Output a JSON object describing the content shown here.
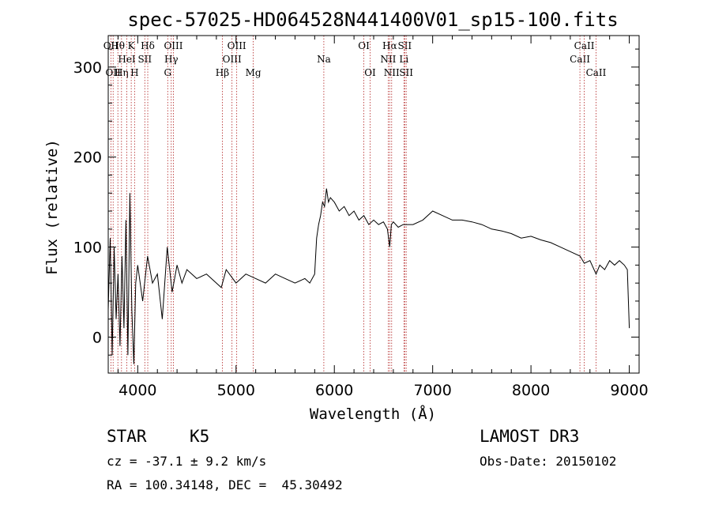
{
  "chart_data": {
    "type": "line",
    "title": "spec-57025-HD064528N441400V01_sp15-100.fits",
    "xlabel": "Wavelength (Å)",
    "ylabel": "Flux (relative)",
    "xlim": [
      3700,
      9100
    ],
    "ylim": [
      -40,
      335
    ],
    "xticks": [
      4000,
      5000,
      6000,
      7000,
      8000,
      9000
    ],
    "yticks": [
      0,
      100,
      200,
      300
    ],
    "series": [
      {
        "name": "flux",
        "x": [
          3700,
          3720,
          3740,
          3760,
          3780,
          3800,
          3820,
          3840,
          3860,
          3880,
          3900,
          3920,
          3940,
          3960,
          3980,
          4000,
          4050,
          4100,
          4150,
          4200,
          4250,
          4300,
          4350,
          4400,
          4450,
          4500,
          4600,
          4700,
          4800,
          4850,
          4900,
          5000,
          5100,
          5200,
          5300,
          5400,
          5500,
          5600,
          5700,
          5750,
          5800,
          5820,
          5840,
          5860,
          5880,
          5900,
          5920,
          5940,
          5960,
          6000,
          6050,
          6100,
          6150,
          6200,
          6250,
          6300,
          6350,
          6400,
          6450,
          6500,
          6540,
          6563,
          6580,
          6600,
          6650,
          6700,
          6800,
          6900,
          7000,
          7100,
          7200,
          7300,
          7400,
          7500,
          7600,
          7700,
          7800,
          7900,
          8000,
          8100,
          8200,
          8300,
          8400,
          8500,
          8542,
          8600,
          8662,
          8700,
          8750,
          8800,
          8850,
          8900,
          8950,
          8980,
          9000
        ],
        "y": [
          30,
          110,
          -20,
          100,
          20,
          70,
          -10,
          90,
          10,
          130,
          -20,
          160,
          30,
          -30,
          60,
          80,
          40,
          90,
          60,
          70,
          20,
          100,
          50,
          80,
          60,
          75,
          65,
          70,
          60,
          55,
          75,
          60,
          70,
          65,
          60,
          70,
          65,
          60,
          65,
          60,
          70,
          110,
          125,
          135,
          150,
          145,
          165,
          150,
          155,
          150,
          140,
          145,
          135,
          140,
          130,
          135,
          125,
          130,
          125,
          128,
          120,
          100,
          125,
          128,
          122,
          125,
          125,
          130,
          140,
          135,
          130,
          130,
          128,
          125,
          120,
          118,
          115,
          110,
          112,
          108,
          105,
          100,
          95,
          90,
          82,
          85,
          70,
          80,
          75,
          85,
          80,
          85,
          80,
          75,
          10
        ]
      }
    ],
    "line_markers": [
      {
        "name": "H-eta-line",
        "label": "Hη",
        "x": 3835,
        "row": 3
      },
      {
        "name": "OII-line",
        "label": "OII",
        "x": 3727,
        "row": 1
      },
      {
        "name": "OII-line-2",
        "label": "OII",
        "x": 3750,
        "row": 3
      },
      {
        "name": "H-theta-line",
        "label": "Hθ",
        "x": 3798,
        "row": 1
      },
      {
        "name": "HeI-line",
        "label": "HeI",
        "x": 3889,
        "row": 2
      },
      {
        "name": "CaII-K-line",
        "label": "K",
        "x": 3934,
        "row": 1
      },
      {
        "name": "CaII-H-line",
        "label": "H",
        "x": 3968,
        "row": 3
      },
      {
        "name": "SII-line",
        "label": "SII",
        "x": 4072,
        "row": 2
      },
      {
        "name": "H-delta-line",
        "label": "Hδ",
        "x": 4102,
        "row": 1
      },
      {
        "name": "G-band-line",
        "label": "G",
        "x": 4305,
        "row": 3
      },
      {
        "name": "H-gamma-line",
        "label": "Hγ",
        "x": 4341,
        "row": 2
      },
      {
        "name": "OIII-line-4363",
        "label": "OIII",
        "x": 4363,
        "row": 1
      },
      {
        "name": "H-beta-line",
        "label": "Hβ",
        "x": 4861,
        "row": 3
      },
      {
        "name": "OIII-line-4959",
        "label": "OIII",
        "x": 4959,
        "row": 2
      },
      {
        "name": "OIII-line-5007",
        "label": "OIII",
        "x": 5007,
        "row": 1
      },
      {
        "name": "Mg-line",
        "label": "Mg",
        "x": 5175,
        "row": 3
      },
      {
        "name": "Na-line",
        "label": "Na",
        "x": 5893,
        "row": 2
      },
      {
        "name": "OI-line-6300",
        "label": "OI",
        "x": 6300,
        "row": 1
      },
      {
        "name": "OI-line-6364",
        "label": "OI",
        "x": 6364,
        "row": 3
      },
      {
        "name": "NII-line-6548",
        "label": "NII",
        "x": 6548,
        "row": 2
      },
      {
        "name": "H-alpha-line",
        "label": "Hα",
        "x": 6563,
        "row": 1
      },
      {
        "name": "NII-line-6583",
        "label": "NII",
        "x": 6583,
        "row": 3
      },
      {
        "name": "Li-line",
        "label": "Li",
        "x": 6708,
        "row": 2
      },
      {
        "name": "SII-line-6716",
        "label": "SII",
        "x": 6716,
        "row": 1
      },
      {
        "name": "SII-line-6731",
        "label": "SII",
        "x": 6731,
        "row": 3
      },
      {
        "name": "CaII-line-8498",
        "label": "CaII",
        "x": 8498,
        "row": 2
      },
      {
        "name": "CaII-line-8542",
        "label": "CaII",
        "x": 8542,
        "row": 1
      },
      {
        "name": "CaII-line-8662",
        "label": "CaII",
        "x": 8662,
        "row": 3
      }
    ],
    "colors": {
      "spectrum": "#000000",
      "marker": "#b22222",
      "frame": "#000000"
    }
  },
  "info": {
    "object_class": "STAR",
    "subclass": "K5",
    "survey": "LAMOST DR3",
    "redshift": "cz = -37.1 ± 9.2 km/s",
    "obs_date": "Obs-Date: 20150102",
    "coords": "RA = 100.34148, DEC =  45.30492"
  }
}
